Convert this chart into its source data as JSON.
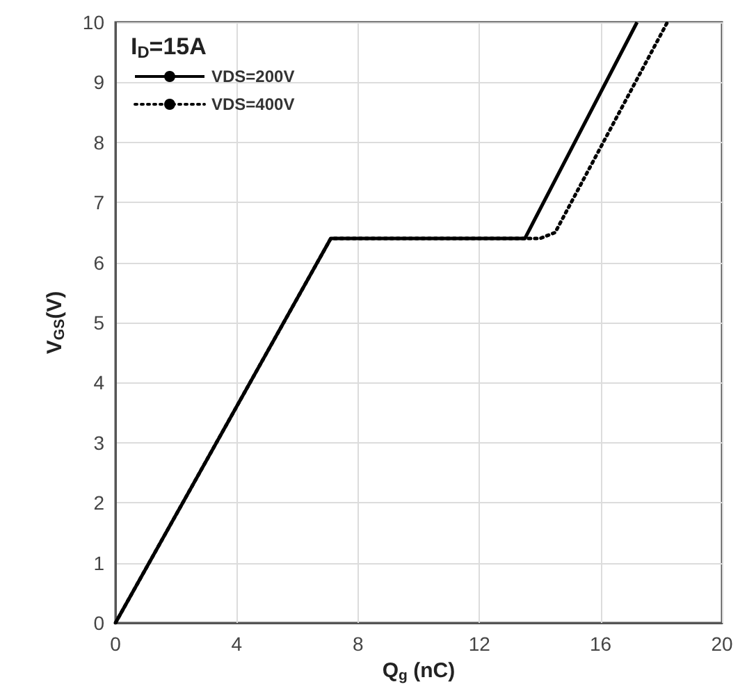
{
  "chart_data": {
    "type": "line",
    "xlabel": "Q$_{g}$ (nC)",
    "ylabel": "V$_{GS}$(V)",
    "legend_title": "I$_{D}$=15A",
    "series": [
      {
        "name": "VDS=200V",
        "color": "#000000",
        "line_style": "solid",
        "x": [
          0,
          7.1,
          13.5,
          17.2
        ],
        "values": [
          0,
          6.4,
          6.4,
          10
        ]
      },
      {
        "name": "VDS=400V",
        "color": "#000000",
        "line_style": "dotted",
        "x": [
          0,
          7.1,
          14.0,
          14.5,
          18.2
        ],
        "values": [
          0,
          6.4,
          6.4,
          6.5,
          10
        ]
      }
    ],
    "xlim": [
      0,
      20
    ],
    "xticks": [
      0,
      4,
      8,
      12,
      16,
      20
    ],
    "ylim": [
      0,
      10
    ],
    "yticks": [
      0,
      1,
      2,
      3,
      4,
      5,
      6,
      7,
      8,
      9,
      10
    ],
    "grid": true,
    "legend": "top left",
    "marker": "none"
  }
}
